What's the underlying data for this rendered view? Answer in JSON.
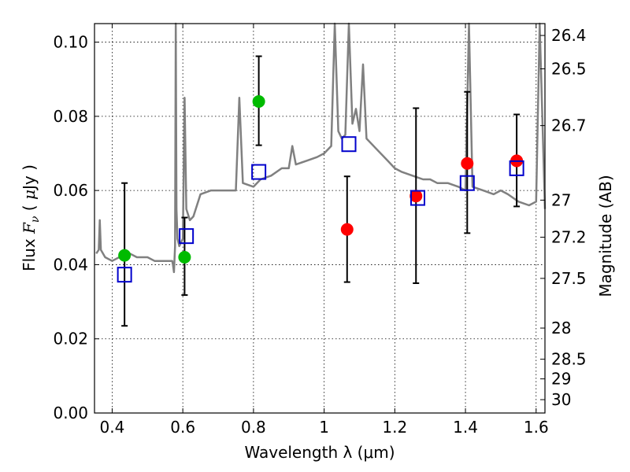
{
  "chart_data": {
    "type": "scatter",
    "xlabel": "Wavelength  λ (μm)",
    "ylabel": "Flux  F_ν  ( μJy )",
    "ylabel_right": "Magnitude (AB)",
    "xlim": [
      0.35,
      1.625
    ],
    "ylim": [
      0.0,
      0.105
    ],
    "grid": true,
    "x_ticks": [
      {
        "value": 0.4,
        "label": "0.4"
      },
      {
        "value": 0.6,
        "label": "0.6"
      },
      {
        "value": 0.8,
        "label": "0.8"
      },
      {
        "value": 1.0,
        "label": "1"
      },
      {
        "value": 1.2,
        "label": "1.2"
      },
      {
        "value": 1.4,
        "label": "1.4"
      },
      {
        "value": 1.6,
        "label": "1.6"
      }
    ],
    "y_ticks": [
      {
        "value": 0.0,
        "label": "0.00"
      },
      {
        "value": 0.02,
        "label": "0.02"
      },
      {
        "value": 0.04,
        "label": "0.04"
      },
      {
        "value": 0.06,
        "label": "0.06"
      },
      {
        "value": 0.08,
        "label": "0.08"
      },
      {
        "value": 0.1,
        "label": "0.10"
      }
    ],
    "right_ticks": [
      {
        "flux": 0.1018,
        "label": "26.4"
      },
      {
        "flux": 0.0928,
        "label": "26.5"
      },
      {
        "flux": 0.0775,
        "label": "26.7"
      },
      {
        "flux": 0.0574,
        "label": "27"
      },
      {
        "flux": 0.0474,
        "label": "27.2"
      },
      {
        "flux": 0.0363,
        "label": "27.5"
      },
      {
        "flux": 0.0229,
        "label": "28"
      },
      {
        "flux": 0.0145,
        "label": "28.5"
      },
      {
        "flux": 0.0092,
        "label": "29"
      },
      {
        "flux": 0.0036,
        "label": "30"
      }
    ],
    "series": [
      {
        "kind": "sed_model_line",
        "color": "#808080",
        "x": [
          0.355,
          0.362,
          0.365,
          0.368,
          0.38,
          0.4,
          0.42,
          0.45,
          0.47,
          0.5,
          0.52,
          0.55,
          0.57,
          0.572,
          0.575,
          0.578,
          0.58,
          0.582,
          0.585,
          0.59,
          0.6,
          0.605,
          0.61,
          0.62,
          0.63,
          0.65,
          0.68,
          0.7,
          0.72,
          0.75,
          0.76,
          0.77,
          0.8,
          0.82,
          0.85,
          0.88,
          0.9,
          0.91,
          0.92,
          0.95,
          0.98,
          1.0,
          1.02,
          1.03,
          1.04,
          1.05,
          1.06,
          1.07,
          1.08,
          1.09,
          1.1,
          1.11,
          1.12,
          1.15,
          1.18,
          1.2,
          1.22,
          1.25,
          1.28,
          1.3,
          1.32,
          1.35,
          1.38,
          1.4,
          1.41,
          1.42,
          1.45,
          1.48,
          1.5,
          1.52,
          1.55,
          1.58,
          1.6,
          1.61,
          1.625
        ],
        "y": [
          0.043,
          0.044,
          0.052,
          0.044,
          0.042,
          0.041,
          0.042,
          0.043,
          0.042,
          0.042,
          0.041,
          0.041,
          0.041,
          0.04,
          0.038,
          0.045,
          0.105,
          0.055,
          0.047,
          0.045,
          0.047,
          0.085,
          0.055,
          0.052,
          0.053,
          0.059,
          0.06,
          0.06,
          0.06,
          0.06,
          0.085,
          0.062,
          0.061,
          0.063,
          0.064,
          0.066,
          0.066,
          0.072,
          0.067,
          0.068,
          0.069,
          0.07,
          0.072,
          0.105,
          0.076,
          0.074,
          0.075,
          0.105,
          0.078,
          0.082,
          0.076,
          0.094,
          0.074,
          0.071,
          0.068,
          0.066,
          0.065,
          0.064,
          0.063,
          0.063,
          0.062,
          0.062,
          0.061,
          0.06,
          0.105,
          0.061,
          0.06,
          0.059,
          0.06,
          0.059,
          0.057,
          0.056,
          0.057,
          0.105,
          0.055
        ]
      },
      {
        "kind": "errorbars",
        "color": "#000000",
        "points": [
          {
            "x": 0.435,
            "y": 0.0425,
            "lo": 0.0235,
            "hi": 0.062
          },
          {
            "x": 0.605,
            "y": 0.042,
            "lo": 0.0318,
            "hi": 0.0527
          },
          {
            "x": 0.815,
            "y": 0.084,
            "lo": 0.0722,
            "hi": 0.0962
          },
          {
            "x": 1.065,
            "y": 0.0495,
            "lo": 0.0353,
            "hi": 0.0638
          },
          {
            "x": 1.26,
            "y": 0.0585,
            "lo": 0.035,
            "hi": 0.0822
          },
          {
            "x": 1.405,
            "y": 0.0673,
            "lo": 0.0485,
            "hi": 0.0866
          },
          {
            "x": 1.545,
            "y": 0.068,
            "lo": 0.0557,
            "hi": 0.0805
          }
        ]
      },
      {
        "kind": "filled_circles",
        "color": "#00bb00",
        "x": [
          0.435,
          0.605,
          0.815
        ],
        "y": [
          0.0425,
          0.042,
          0.084
        ]
      },
      {
        "kind": "filled_circles",
        "color": "#ff0000",
        "x": [
          1.065,
          1.26,
          1.405,
          1.545
        ],
        "y": [
          0.0495,
          0.0585,
          0.0673,
          0.068
        ]
      },
      {
        "kind": "open_squares",
        "color": "#0000cc",
        "x": [
          0.435,
          0.61,
          0.815,
          1.07,
          1.265,
          1.405,
          1.545
        ],
        "y": [
          0.0373,
          0.0477,
          0.065,
          0.0725,
          0.058,
          0.062,
          0.066
        ]
      }
    ]
  }
}
